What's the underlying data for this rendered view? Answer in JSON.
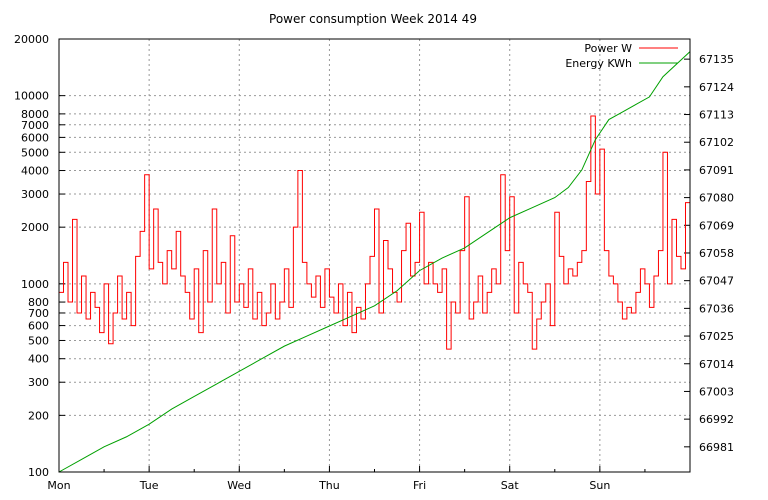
{
  "chart_data": {
    "type": "line",
    "title": "Power consumption Week 2014 49",
    "grid": true,
    "legend_position": "top-right",
    "x_axis": {
      "categories": [
        "Mon",
        "Tue",
        "Wed",
        "Thu",
        "Fri",
        "Sat",
        "Sun"
      ],
      "range_days": [
        0,
        7
      ]
    },
    "y_left": {
      "scale": "log",
      "range": [
        100,
        20000
      ],
      "ticks": [
        100,
        200,
        300,
        400,
        500,
        600,
        700,
        800,
        1000,
        2000,
        3000,
        4000,
        5000,
        6000,
        7000,
        8000,
        10000,
        20000
      ]
    },
    "y_right": {
      "scale": "linear",
      "range": [
        66971,
        67143
      ],
      "ticks": [
        66981,
        66992,
        67003,
        67014,
        67025,
        67036,
        67047,
        67058,
        67069,
        67080,
        67091,
        67102,
        67113,
        67124,
        67135
      ]
    },
    "series": [
      {
        "name": "Power W",
        "axis": "left",
        "color": "#ff0000",
        "x": [
          0.0,
          0.05,
          0.1,
          0.15,
          0.2,
          0.25,
          0.3,
          0.35,
          0.4,
          0.45,
          0.5,
          0.55,
          0.6,
          0.65,
          0.7,
          0.75,
          0.8,
          0.85,
          0.9,
          0.95,
          1.0,
          1.05,
          1.1,
          1.15,
          1.2,
          1.25,
          1.3,
          1.35,
          1.4,
          1.45,
          1.5,
          1.55,
          1.6,
          1.65,
          1.7,
          1.75,
          1.8,
          1.85,
          1.9,
          1.95,
          2.0,
          2.05,
          2.1,
          2.15,
          2.2,
          2.25,
          2.3,
          2.35,
          2.4,
          2.45,
          2.5,
          2.55,
          2.6,
          2.65,
          2.7,
          2.75,
          2.8,
          2.85,
          2.9,
          2.95,
          3.0,
          3.05,
          3.1,
          3.15,
          3.2,
          3.25,
          3.3,
          3.35,
          3.4,
          3.45,
          3.5,
          3.55,
          3.6,
          3.65,
          3.7,
          3.75,
          3.8,
          3.85,
          3.9,
          3.95,
          4.0,
          4.05,
          4.1,
          4.15,
          4.2,
          4.25,
          4.3,
          4.35,
          4.4,
          4.45,
          4.5,
          4.55,
          4.6,
          4.65,
          4.7,
          4.75,
          4.8,
          4.85,
          4.9,
          4.95,
          5.0,
          5.05,
          5.1,
          5.15,
          5.2,
          5.25,
          5.3,
          5.35,
          5.4,
          5.45,
          5.5,
          5.55,
          5.6,
          5.65,
          5.7,
          5.75,
          5.8,
          5.85,
          5.9,
          5.95,
          6.0,
          6.05,
          6.1,
          6.15,
          6.2,
          6.25,
          6.3,
          6.35,
          6.4,
          6.45,
          6.5,
          6.55,
          6.6,
          6.65,
          6.7,
          6.75,
          6.8,
          6.85,
          6.9,
          6.95,
          7.0
        ],
        "values": [
          900,
          1300,
          800,
          2200,
          700,
          1100,
          650,
          900,
          750,
          550,
          1000,
          480,
          700,
          1100,
          650,
          900,
          600,
          1400,
          1900,
          3800,
          1200,
          2500,
          1300,
          1000,
          1500,
          1200,
          1900,
          1100,
          900,
          650,
          1200,
          550,
          1500,
          800,
          2500,
          1000,
          1300,
          700,
          1800,
          800,
          1000,
          750,
          1200,
          650,
          900,
          600,
          700,
          1000,
          650,
          800,
          1200,
          750,
          2000,
          4000,
          1300,
          1000,
          850,
          1100,
          750,
          1200,
          850,
          700,
          1000,
          600,
          900,
          550,
          750,
          650,
          1000,
          1400,
          2500,
          700,
          1700,
          1200,
          900,
          800,
          1500,
          2100,
          1100,
          1300,
          2400,
          1000,
          1300,
          1000,
          900,
          1200,
          450,
          800,
          700,
          1500,
          2900,
          650,
          800,
          1100,
          700,
          900,
          1200,
          1000,
          3800,
          1500,
          2900,
          700,
          1300,
          1000,
          900,
          450,
          650,
          800,
          1000,
          600,
          2400,
          1400,
          1000,
          1200,
          1100,
          1300,
          1500,
          3500,
          7800,
          3000,
          5200,
          1500,
          1100,
          1000,
          800,
          650,
          750,
          700,
          900,
          1200,
          1000,
          750,
          1100,
          1500,
          5000,
          1000,
          2200,
          1400,
          1200,
          2700,
          1500
        ]
      },
      {
        "name": "Energy KWh",
        "axis": "right",
        "color": "#00a000",
        "x": [
          0.0,
          0.25,
          0.5,
          0.75,
          1.0,
          1.25,
          1.5,
          1.75,
          2.0,
          2.25,
          2.5,
          2.75,
          3.0,
          3.25,
          3.5,
          3.75,
          4.0,
          4.25,
          4.5,
          4.75,
          5.0,
          5.25,
          5.5,
          5.65,
          5.8,
          5.95,
          6.1,
          6.25,
          6.4,
          6.55,
          6.7,
          7.0
        ],
        "values": [
          66971,
          66976,
          66981,
          66985,
          66990,
          66996,
          67001,
          67006,
          67011,
          67016,
          67021,
          67025,
          67029,
          67033,
          67037,
          67043,
          67051,
          67056,
          67060,
          67066,
          67072,
          67076,
          67080,
          67084,
          67091,
          67103,
          67111,
          67114,
          67117,
          67120,
          67128,
          67138
        ]
      }
    ]
  }
}
